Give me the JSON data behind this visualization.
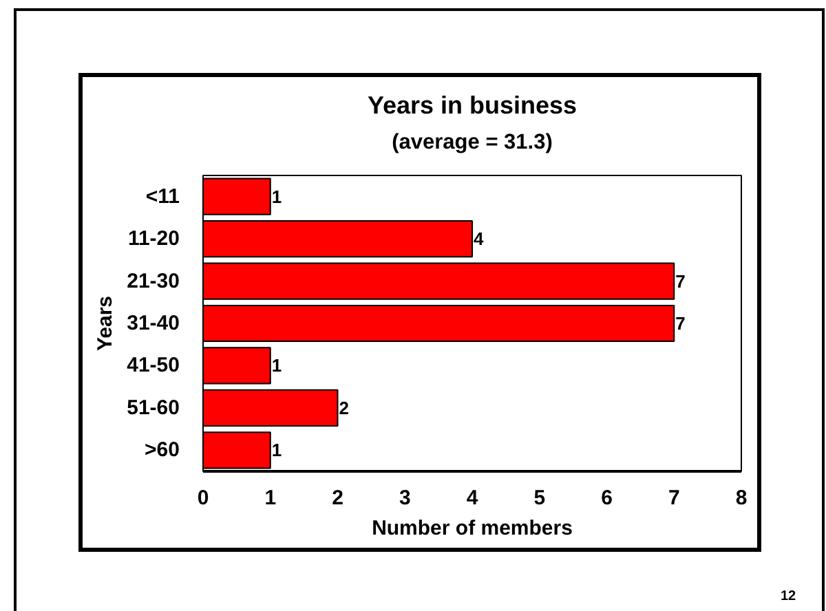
{
  "chart_data": {
    "type": "bar",
    "orientation": "horizontal",
    "title": "Years in business",
    "subtitle": "(average = 31.3)",
    "xlabel": "Number of members",
    "ylabel": "Years",
    "categories": [
      "<11",
      "11-20",
      "21-30",
      "31-40",
      "41-50",
      "51-60",
      ">60"
    ],
    "values": [
      1,
      4,
      7,
      7,
      1,
      2,
      1
    ],
    "color": "#ff0000",
    "xlim": [
      0,
      8
    ],
    "xticks": [
      0,
      1,
      2,
      3,
      4,
      5,
      6,
      7,
      8
    ],
    "data_labels": true,
    "annotations": [
      "12"
    ]
  }
}
